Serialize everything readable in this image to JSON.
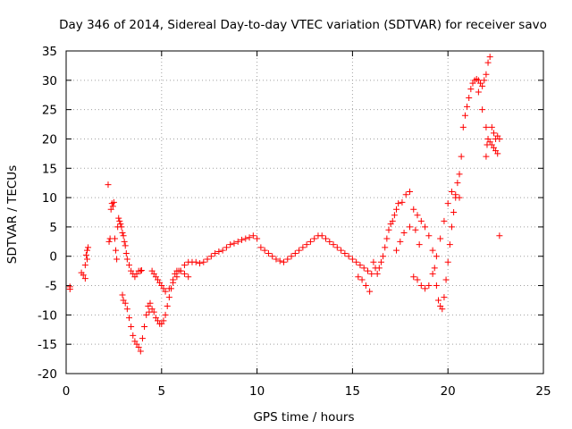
{
  "chart_data": {
    "type": "scatter",
    "title": "Day 346 of 2014, Sidereal Day-to-day VTEC variation (SDTVAR) for receiver savo",
    "xlabel": "GPS time / hours",
    "ylabel": "SDTVAR / TECUs",
    "xlim": [
      0,
      25
    ],
    "ylim": [
      -20,
      35
    ],
    "xticks": [
      "0",
      "5",
      "10",
      "15",
      "20",
      "25"
    ],
    "yticks": [
      "-20",
      "-15",
      "-10",
      "-5",
      "0",
      "5",
      "10",
      "15",
      "20",
      "25",
      "30",
      "35"
    ],
    "grid": true,
    "marker": "+",
    "series_color": "#ff0000",
    "series": [
      {
        "name": "SDTVAR",
        "x": [
          0.2,
          0.2,
          0.8,
          0.9,
          1.0,
          1.0,
          1.05,
          1.1,
          1.1,
          1.15,
          2.2,
          2.25,
          2.3,
          2.35,
          2.4,
          2.45,
          2.5,
          2.55,
          2.6,
          2.65,
          2.7,
          2.75,
          2.8,
          2.85,
          2.9,
          2.95,
          3.0,
          3.05,
          3.1,
          3.15,
          3.2,
          3.3,
          3.4,
          3.5,
          3.6,
          3.7,
          3.8,
          3.9,
          3.95,
          2.95,
          3.0,
          3.1,
          3.2,
          3.3,
          3.4,
          3.5,
          3.6,
          3.7,
          3.8,
          3.9,
          4.0,
          4.1,
          4.2,
          4.3,
          4.35,
          4.4,
          4.5,
          4.6,
          4.7,
          4.8,
          4.9,
          5.0,
          5.1,
          5.2,
          5.3,
          5.4,
          5.5,
          5.6,
          5.7,
          5.8,
          5.9,
          6.0,
          6.2,
          6.4,
          4.5,
          4.6,
          4.7,
          4.8,
          4.9,
          5.0,
          5.1,
          5.2,
          5.4,
          5.6,
          5.8,
          6.0,
          6.2,
          6.4,
          6.6,
          6.8,
          7.0,
          7.2,
          7.4,
          7.6,
          7.8,
          8.0,
          8.2,
          8.4,
          8.6,
          8.8,
          9.0,
          9.2,
          9.4,
          9.6,
          9.8,
          10.0,
          10.2,
          10.4,
          10.6,
          10.8,
          11.0,
          11.2,
          11.4,
          11.6,
          11.8,
          12.0,
          12.2,
          12.4,
          12.6,
          12.8,
          13.0,
          13.2,
          13.4,
          13.6,
          13.8,
          14.0,
          14.2,
          14.4,
          14.6,
          14.8,
          15.0,
          15.2,
          15.4,
          15.6,
          15.8,
          16.0,
          15.3,
          15.5,
          15.7,
          15.9,
          16.1,
          16.2,
          16.3,
          16.4,
          16.5,
          16.6,
          16.7,
          16.8,
          16.9,
          17.0,
          17.1,
          17.2,
          17.3,
          17.4,
          17.6,
          17.8,
          18.0,
          18.2,
          18.4,
          18.6,
          18.8,
          19.0,
          19.2,
          19.3,
          19.4,
          19.5,
          19.6,
          19.7,
          19.8,
          19.9,
          20.0,
          20.1,
          20.2,
          20.3,
          20.4,
          20.5,
          20.6,
          20.7,
          20.8,
          20.9,
          21.0,
          21.1,
          21.2,
          21.3,
          21.4,
          21.5,
          21.6,
          21.7,
          21.8,
          21.9,
          22.0,
          22.1,
          22.2,
          22.3,
          22.4,
          22.5,
          22.6,
          22.7,
          18.2,
          18.4,
          18.6,
          18.8,
          19.0,
          19.2,
          19.4,
          19.6,
          19.8,
          20.0,
          20.2,
          20.4,
          20.6,
          21.6,
          21.8,
          22.0,
          22.1,
          22.2,
          22.3,
          22.4,
          22.5,
          22.6,
          22.0,
          22.05,
          22.7,
          17.3,
          17.5,
          17.7,
          18.0,
          18.3,
          18.5
        ],
        "y": [
          -5.2,
          -5.6,
          -2.8,
          -3.2,
          -3.8,
          -1.5,
          0.2,
          1.0,
          -0.5,
          1.5,
          12.2,
          2.5,
          3.0,
          8.0,
          9.0,
          8.5,
          9.2,
          3.0,
          1.0,
          -0.5,
          5.0,
          6.5,
          6.0,
          5.5,
          5.0,
          4.0,
          3.5,
          2.5,
          1.8,
          0.5,
          -0.5,
          -1.5,
          -2.5,
          -3.0,
          -3.5,
          -3.0,
          -2.5,
          -2.5,
          -2.4,
          -6.6,
          -7.5,
          -8.0,
          -9.0,
          -10.5,
          -12.0,
          -13.5,
          -14.5,
          -15.0,
          -15.5,
          -16.2,
          -14.0,
          -12.0,
          -10.0,
          -8.5,
          -9.5,
          -8.0,
          -9.0,
          -9.5,
          -10.5,
          -11.0,
          -11.5,
          -11.5,
          -11.0,
          -10.0,
          -8.5,
          -7.0,
          -5.5,
          -4.0,
          -3.0,
          -2.5,
          -2.5,
          -2.5,
          -3.0,
          -3.5,
          -2.5,
          -3.0,
          -3.5,
          -4.0,
          -4.5,
          -5.0,
          -5.5,
          -6.0,
          -5.5,
          -4.5,
          -3.5,
          -2.5,
          -1.5,
          -1.0,
          -1.0,
          -1.0,
          -1.2,
          -1.0,
          -0.5,
          0.0,
          0.5,
          0.8,
          1.0,
          1.5,
          2.0,
          2.2,
          2.5,
          2.8,
          3.0,
          3.2,
          3.5,
          3.0,
          1.5,
          1.0,
          0.5,
          0.0,
          -0.5,
          -0.8,
          -1.0,
          -0.5,
          0.0,
          0.5,
          1.0,
          1.5,
          2.0,
          2.5,
          3.0,
          3.5,
          3.5,
          3.0,
          2.5,
          2.0,
          1.5,
          1.0,
          0.5,
          0.0,
          -0.5,
          -1.0,
          -1.5,
          -2.0,
          -2.5,
          -3.0,
          -3.5,
          -4.0,
          -5.0,
          -6.0,
          -1.0,
          -2.0,
          -3.0,
          -2.0,
          -1.0,
          0.0,
          1.5,
          3.0,
          4.5,
          5.5,
          6.0,
          7.0,
          8.0,
          9.0,
          9.2,
          10.5,
          11.0,
          8.0,
          7.0,
          6.0,
          5.0,
          3.5,
          1.0,
          -2.0,
          -5.0,
          -7.5,
          -8.5,
          -9.0,
          -7.0,
          -4.0,
          -1.0,
          2.0,
          5.0,
          7.5,
          10.0,
          12.5,
          14.0,
          17.0,
          22.0,
          24.0,
          25.5,
          27.0,
          28.5,
          29.5,
          30.0,
          30.2,
          30.0,
          29.5,
          29.0,
          30.0,
          31.0,
          33.0,
          34.0,
          22.0,
          21.0,
          20.0,
          20.5,
          20.0,
          -3.5,
          -4.0,
          -5.0,
          -5.5,
          -5.0,
          -3.0,
          0.0,
          3.0,
          6.0,
          9.0,
          11.0,
          10.5,
          10.0,
          28.0,
          25.0,
          22.0,
          20.0,
          19.5,
          19.0,
          18.5,
          18.0,
          17.5,
          17.0,
          19.0,
          3.5,
          1.0,
          2.5,
          4.0,
          5.0,
          4.5,
          2.0
        ]
      }
    ]
  }
}
